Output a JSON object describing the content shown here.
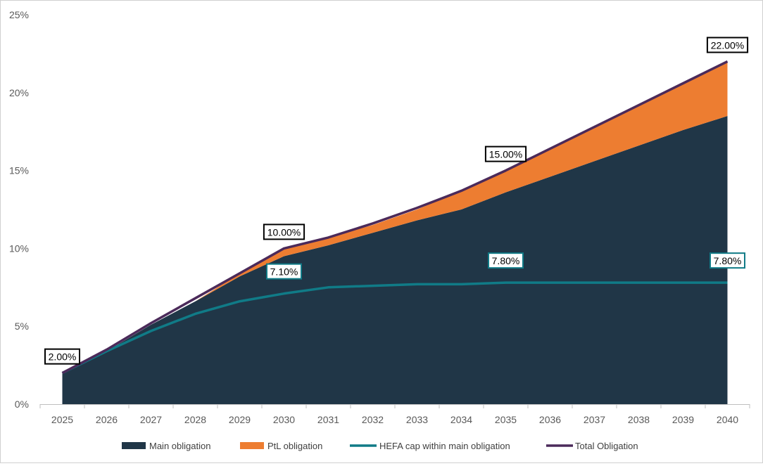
{
  "chart_data": {
    "type": "area",
    "title": "",
    "xlabel": "",
    "ylabel": "",
    "ylim": [
      0,
      25
    ],
    "y_unit": "%",
    "y_ticks": [
      "0%",
      "5%",
      "10%",
      "15%",
      "20%",
      "25%"
    ],
    "x": [
      "2025",
      "2026",
      "2027",
      "2028",
      "2029",
      "2030",
      "2031",
      "2032",
      "2033",
      "2034",
      "2035",
      "2036",
      "2037",
      "2038",
      "2039",
      "2040"
    ],
    "grid": false,
    "legend_position": "bottom",
    "series": [
      {
        "name": "Main obligation",
        "kind": "area",
        "color": "#203647",
        "values": [
          2.0,
          3.4,
          5.1,
          6.6,
          8.2,
          9.5,
          10.2,
          11.0,
          11.8,
          12.5,
          13.6,
          14.6,
          15.6,
          16.6,
          17.6,
          18.5
        ]
      },
      {
        "name": "PtL obligation",
        "kind": "area",
        "color": "#ED7D31",
        "values": [
          0.0,
          0.0,
          0.0,
          0.0,
          0.2,
          0.5,
          0.5,
          0.5,
          0.7,
          1.2,
          1.4,
          1.8,
          2.2,
          2.6,
          3.0,
          3.5
        ]
      },
      {
        "name": "HEFA cap within main obligation",
        "kind": "line",
        "color": "#107B87",
        "values": [
          2.0,
          3.4,
          4.7,
          5.8,
          6.6,
          7.1,
          7.5,
          7.6,
          7.7,
          7.7,
          7.8,
          7.8,
          7.8,
          7.8,
          7.8,
          7.8
        ]
      },
      {
        "name": "Total Obligation",
        "kind": "line",
        "color": "#4B2A5A",
        "values": [
          2.0,
          3.5,
          5.2,
          6.8,
          8.4,
          10.0,
          10.7,
          11.6,
          12.6,
          13.7,
          15.0,
          16.4,
          17.8,
          19.2,
          20.6,
          22.0
        ]
      }
    ],
    "annotations": [
      {
        "series": "Total Obligation",
        "x": "2025",
        "y": 2.0,
        "text": "2.00%"
      },
      {
        "series": "Total Obligation",
        "x": "2030",
        "y": 10.0,
        "text": "10.00%"
      },
      {
        "series": "Total Obligation",
        "x": "2035",
        "y": 15.0,
        "text": "15.00%"
      },
      {
        "series": "Total Obligation",
        "x": "2040",
        "y": 22.0,
        "text": "22.00%"
      },
      {
        "series": "HEFA cap within main obligation",
        "x": "2030",
        "y": 7.1,
        "text": "7.10%"
      },
      {
        "series": "HEFA cap within main obligation",
        "x": "2035",
        "y": 7.8,
        "text": "7.80%"
      },
      {
        "series": "HEFA cap within main obligation",
        "x": "2040",
        "y": 7.8,
        "text": "7.80%"
      }
    ]
  }
}
